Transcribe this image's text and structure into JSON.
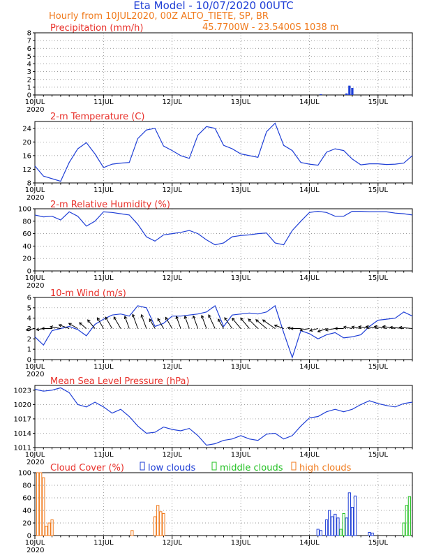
{
  "header": {
    "title": "Eta Model - 10/07/2020 00UTC",
    "line2": "Hourly from 10JUL2020, 00Z   ALTO_TIETE, SP, BR",
    "location": "45.7700W - 23.5400S     1038   m"
  },
  "colors": {
    "title": "#1f3fd6",
    "subtitle": "#f07a1c",
    "panel_title": "#e8302a",
    "series_line": "#1f3fd6",
    "low_clouds": "#1f3fd6",
    "middle_clouds": "#22c022",
    "high_clouds": "#f07a1c",
    "wind_barb": "#000000"
  },
  "chart_data": [
    {
      "type": "bar",
      "title": "Precipitation (mm/h)",
      "ylim": [
        0,
        8
      ],
      "yticks": [
        0,
        1,
        2,
        3,
        4,
        5,
        6,
        7,
        8
      ],
      "xlabels": [
        {
          "label": "10JUL",
          "year": "2020"
        },
        {
          "label": "11JUL",
          "year": ""
        },
        {
          "label": "12JUL",
          "year": ""
        },
        {
          "label": "13JUL",
          "year": ""
        },
        {
          "label": "14JUL",
          "year": ""
        },
        {
          "label": "15JUL",
          "year": ""
        }
      ],
      "x_hours": [
        100,
        109,
        110,
        111
      ],
      "values": [
        0.1,
        0.2,
        1.2,
        0.9
      ]
    },
    {
      "type": "line",
      "title": "2-m Temperature (C)",
      "ylim": [
        8,
        26
      ],
      "yticks": [
        8,
        12,
        16,
        20,
        24
      ],
      "xlabels": [
        {
          "label": "10JUL",
          "year": "2020"
        },
        {
          "label": "11JUL",
          "year": ""
        },
        {
          "label": "12JUL",
          "year": ""
        },
        {
          "label": "13JUL",
          "year": ""
        },
        {
          "label": "14JUL",
          "year": ""
        },
        {
          "label": "15JUL",
          "year": ""
        }
      ],
      "x": [
        0,
        3,
        9,
        12,
        15,
        18,
        21,
        24,
        27,
        30,
        33,
        36,
        39,
        42,
        45,
        48,
        51,
        54,
        57,
        60,
        63,
        66,
        69,
        72,
        75,
        78,
        81,
        84,
        87,
        90,
        93,
        96,
        99,
        102,
        105,
        108,
        111,
        114,
        117,
        120,
        123,
        126,
        129,
        132
      ],
      "values": [
        13,
        10,
        8.5,
        14,
        18,
        19.8,
        16.5,
        12.5,
        13.5,
        13.8,
        14,
        21,
        23.5,
        24,
        18.8,
        17.5,
        16,
        15.2,
        22,
        24.5,
        24,
        19,
        18,
        16.5,
        16,
        15.5,
        23,
        25.5,
        19,
        17.5,
        14,
        13.5,
        13.2,
        17,
        18,
        17.5,
        15,
        13.3,
        13.6,
        13.6,
        13.4,
        13.5,
        13.8,
        16
      ]
    },
    {
      "type": "line",
      "title": "2-m Relative Humidity (%)",
      "ylim": [
        0,
        100
      ],
      "yticks": [
        0,
        20,
        40,
        60,
        80,
        100
      ],
      "xlabels": [
        {
          "label": "10JUL",
          "year": "2020"
        },
        {
          "label": "11JUL",
          "year": ""
        },
        {
          "label": "12JUL",
          "year": ""
        },
        {
          "label": "13JUL",
          "year": ""
        },
        {
          "label": "14JUL",
          "year": ""
        },
        {
          "label": "15JUL",
          "year": ""
        }
      ],
      "x": [
        0,
        3,
        6,
        9,
        12,
        15,
        18,
        21,
        24,
        27,
        30,
        33,
        36,
        39,
        42,
        45,
        48,
        51,
        54,
        57,
        60,
        63,
        66,
        69,
        72,
        75,
        78,
        81,
        84,
        87,
        90,
        93,
        96,
        99,
        102,
        105,
        108,
        111,
        114,
        117,
        120,
        123,
        126,
        129,
        132
      ],
      "values": [
        90,
        87,
        88,
        82,
        95,
        88,
        72,
        80,
        95,
        94,
        92,
        90,
        75,
        55,
        48,
        58,
        60,
        62,
        65,
        60,
        50,
        42,
        45,
        55,
        57,
        58,
        60,
        61,
        45,
        42,
        65,
        80,
        94,
        96,
        94,
        88,
        88,
        96,
        96,
        95,
        95,
        95,
        93,
        92,
        90
      ]
    },
    {
      "type": "line",
      "title": "10-m Wind (m/s)",
      "ylim": [
        0,
        6
      ],
      "yticks": [
        0,
        1,
        2,
        3,
        4,
        5,
        6
      ],
      "xlabels": [
        {
          "label": "10JUL",
          "year": "2020"
        },
        {
          "label": "11JUL",
          "year": ""
        },
        {
          "label": "12JUL",
          "year": ""
        },
        {
          "label": "13JUL",
          "year": ""
        },
        {
          "label": "14JUL",
          "year": ""
        },
        {
          "label": "15JUL",
          "year": ""
        }
      ],
      "x": [
        0,
        3,
        6,
        9,
        12,
        15,
        18,
        21,
        24,
        27,
        30,
        33,
        36,
        39,
        42,
        45,
        48,
        51,
        54,
        57,
        60,
        63,
        66,
        69,
        72,
        75,
        78,
        81,
        84,
        87,
        90,
        93,
        96,
        99,
        102,
        105,
        108,
        111,
        114,
        117,
        120,
        123,
        126,
        129,
        132
      ],
      "values": [
        2.2,
        1.4,
        2.8,
        3.0,
        3.2,
        2.9,
        2.3,
        3.4,
        3.9,
        4.3,
        4.4,
        4.2,
        5.2,
        5.0,
        3.2,
        3.5,
        4.2,
        4.2,
        4.3,
        4.4,
        4.6,
        5.2,
        3.2,
        4.3,
        4.4,
        4.5,
        4.4,
        4.6,
        5.2,
        2.6,
        0.2,
        2.8,
        2.5,
        2.0,
        2.4,
        2.6,
        2.1,
        2.2,
        2.4,
        3.2,
        3.8,
        3.9,
        4.0,
        4.6,
        4.2
      ],
      "wind_dir_deg": [
        80,
        80,
        90,
        100,
        110,
        120,
        130,
        140,
        150,
        150,
        150,
        160,
        160,
        160,
        150,
        150,
        150,
        160,
        160,
        160,
        160,
        155,
        150,
        145,
        140,
        140,
        135,
        130,
        125,
        110,
        100,
        90,
        80,
        75,
        70,
        80,
        90,
        100,
        100,
        100,
        100,
        100,
        100,
        95,
        95
      ]
    },
    {
      "type": "line",
      "title": "Mean Sea Level Pressure (hPa)",
      "ylim": [
        1011,
        1024
      ],
      "yticks": [
        1011,
        1014,
        1017,
        1020,
        1023
      ],
      "xlabels": [
        {
          "label": "10JUL",
          "year": "2020"
        },
        {
          "label": "11JUL",
          "year": ""
        },
        {
          "label": "12JUL",
          "year": ""
        },
        {
          "label": "13JUL",
          "year": ""
        },
        {
          "label": "14JUL",
          "year": ""
        },
        {
          "label": "15JUL",
          "year": ""
        }
      ],
      "x": [
        0,
        3,
        6,
        9,
        12,
        15,
        18,
        21,
        24,
        27,
        30,
        33,
        36,
        39,
        42,
        45,
        48,
        51,
        54,
        57,
        60,
        63,
        66,
        69,
        72,
        75,
        78,
        81,
        84,
        87,
        90,
        93,
        96,
        99,
        102,
        105,
        108,
        111,
        114,
        117,
        120,
        123,
        126,
        129,
        132
      ],
      "values": [
        1023.2,
        1022.8,
        1023.0,
        1023.5,
        1022.5,
        1020.0,
        1019.5,
        1020.5,
        1019.5,
        1018.2,
        1019.0,
        1017.5,
        1015.5,
        1014.0,
        1014.2,
        1015.3,
        1014.8,
        1014.5,
        1015.0,
        1013.5,
        1011.5,
        1011.8,
        1012.5,
        1012.8,
        1013.5,
        1012.8,
        1012.5,
        1013.8,
        1014.0,
        1012.8,
        1013.5,
        1015.5,
        1017.2,
        1017.5,
        1018.5,
        1019.0,
        1018.5,
        1019.0,
        1020.0,
        1020.8,
        1020.2,
        1019.8,
        1019.5,
        1020.2,
        1020.5
      ]
    },
    {
      "type": "bar",
      "title": "Cloud Cover (%)",
      "ylim": [
        0,
        100
      ],
      "yticks": [
        0,
        20,
        40,
        60,
        80,
        100
      ],
      "xlabels": [
        {
          "label": "10JUL",
          "year": "2020"
        },
        {
          "label": "11JUL",
          "year": ""
        },
        {
          "label": "12JUL",
          "year": ""
        },
        {
          "label": "13JUL",
          "year": ""
        },
        {
          "label": "14JUL",
          "year": ""
        },
        {
          "label": "15JUL",
          "year": ""
        }
      ],
      "legend": {
        "low": "low clouds",
        "middle": "middle clouds",
        "high": "high clouds"
      },
      "series": [
        {
          "name": "low clouds",
          "x_hours": [
            99,
            100,
            102,
            103,
            104,
            105,
            106,
            109,
            110,
            111,
            112,
            117,
            118
          ],
          "values": [
            10,
            8,
            25,
            40,
            30,
            34,
            28,
            28,
            68,
            45,
            63,
            5,
            4
          ]
        },
        {
          "name": "middle clouds",
          "x_hours": [
            107,
            108,
            129,
            130,
            131
          ],
          "values": [
            10,
            35,
            20,
            48,
            62
          ]
        },
        {
          "name": "high clouds",
          "x_hours": [
            1,
            2,
            3,
            4,
            5,
            6,
            34,
            42,
            43,
            44,
            45
          ],
          "values": [
            100,
            100,
            92,
            15,
            20,
            25,
            8,
            30,
            48,
            38,
            35
          ]
        }
      ]
    }
  ]
}
